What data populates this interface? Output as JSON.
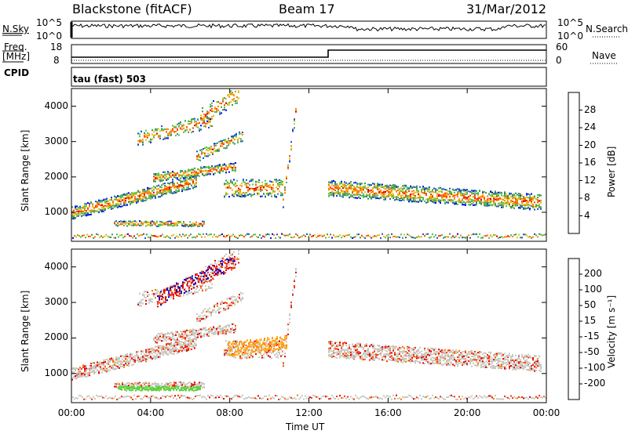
{
  "header": {
    "radar": "Blackstone (fitACF)",
    "beam": "Beam 17",
    "date": "31/Mar/2012"
  },
  "panels": {
    "nsky_label": "N.Sky",
    "nsky_ticks": [
      "10^5",
      "10^0"
    ],
    "nsearch_label": "N.Search",
    "nsearch_ticks": [
      "10^5",
      "10^0"
    ],
    "freq_label_1": "Freq.",
    "freq_label_2": "[MHz]",
    "freq_ticks": [
      "18",
      "8"
    ],
    "nave_label": "Nave",
    "nave_ticks": [
      "60",
      "0"
    ],
    "cpid_label": "CPID",
    "cpid_value": "tau (fast) 503"
  },
  "chart_data": [
    {
      "type": "heatmap",
      "name": "power",
      "ylabel": "Slant Range [km]",
      "xlabel": "Time UT",
      "x_ticks": [
        "00:00",
        "04:00",
        "08:00",
        "12:00",
        "16:00",
        "20:00",
        "00:00"
      ],
      "x_hours": [
        0,
        4,
        8,
        12,
        16,
        20,
        24
      ],
      "y_ticks": [
        1000,
        2000,
        3000,
        4000
      ],
      "ylim": [
        180,
        4500
      ],
      "colorbar": {
        "label": "Power [dB]",
        "ticks": [
          "4",
          "8",
          "12",
          "16",
          "20",
          "24",
          "28"
        ],
        "colors": [
          "#0000ff",
          "#2050c8",
          "#409060",
          "#50c050",
          "#e0c010",
          "#ff8000",
          "#ff4000",
          "#e00000"
        ]
      }
    },
    {
      "type": "heatmap",
      "name": "velocity",
      "ylabel": "Slant Range [km]",
      "xlabel": "Time UT",
      "x_ticks": [
        "00:00",
        "04:00",
        "08:00",
        "12:00",
        "16:00",
        "20:00",
        "00:00"
      ],
      "x_hours": [
        0,
        4,
        8,
        12,
        16,
        20,
        24
      ],
      "y_ticks": [
        1000,
        2000,
        3000,
        4000
      ],
      "ylim": [
        180,
        4500
      ],
      "colorbar": {
        "label": "Velocity [m s⁻¹]",
        "ticks": [
          "200",
          "100",
          "50",
          "15",
          "-15",
          "-50",
          "-100",
          "-200"
        ],
        "colors": [
          "#0000c8",
          "#2060a0",
          "#40a060",
          "#60d040",
          "#c8c8c0",
          "#ffb020",
          "#ff7000",
          "#ff3000",
          "#e00000"
        ]
      }
    }
  ],
  "colors": {
    "background": "#ffffff",
    "axis": "#000000"
  }
}
